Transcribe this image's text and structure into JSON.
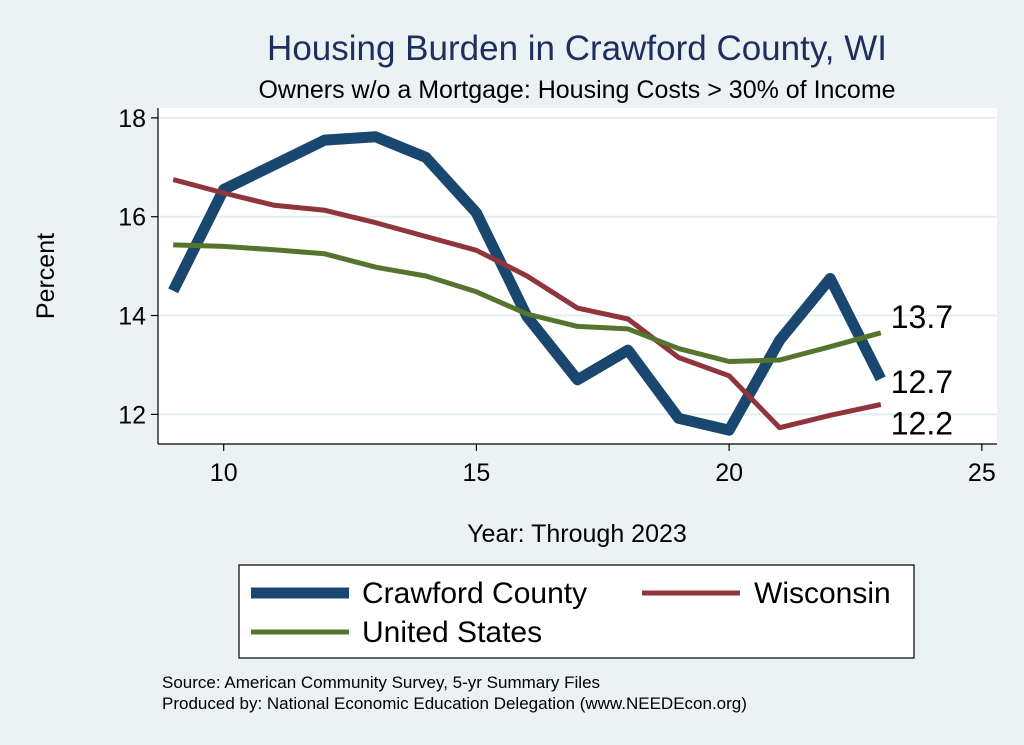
{
  "chart_data": {
    "type": "line",
    "title": "Housing Burden in Crawford County, WI",
    "subtitle": "Owners w/o a Mortgage: Housing Costs > 30% of Income",
    "xlabel": "Year: Through 2023",
    "ylabel": "Percent",
    "xlim": [
      8.7,
      25.3
    ],
    "ylim": [
      11.4,
      18.2
    ],
    "xticks": [
      10,
      15,
      20,
      25
    ],
    "yticks": [
      12,
      14,
      16,
      18
    ],
    "grid": true,
    "legend_position": "bottom",
    "x": [
      9,
      10,
      11,
      12,
      13,
      14,
      15,
      16,
      17,
      18,
      19,
      20,
      21,
      22,
      23
    ],
    "series": [
      {
        "name": "Crawford County",
        "color": "#1a476f",
        "values": [
          14.5,
          16.55,
          17.05,
          17.55,
          17.62,
          17.2,
          16.08,
          13.98,
          12.7,
          13.3,
          11.92,
          11.68,
          13.5,
          14.75,
          12.72
        ],
        "end_label": "12.7"
      },
      {
        "name": "Wisconsin",
        "color": "#90353b",
        "values": [
          16.75,
          16.48,
          16.23,
          16.13,
          15.88,
          15.6,
          15.32,
          14.8,
          14.15,
          13.93,
          13.15,
          12.78,
          11.73,
          11.98,
          12.2
        ],
        "end_label": "12.2"
      },
      {
        "name": "United States",
        "color": "#55752f",
        "values": [
          15.43,
          15.4,
          15.33,
          15.25,
          14.98,
          14.8,
          14.48,
          14.03,
          13.78,
          13.73,
          13.33,
          13.07,
          13.1,
          13.37,
          13.65
        ],
        "end_label": "13.7"
      }
    ],
    "source": "Source: American Community Survey, 5-yr Summary Files",
    "producer": "Produced by: National Economic Education Delegation (www.NEEDEcon.org)"
  }
}
